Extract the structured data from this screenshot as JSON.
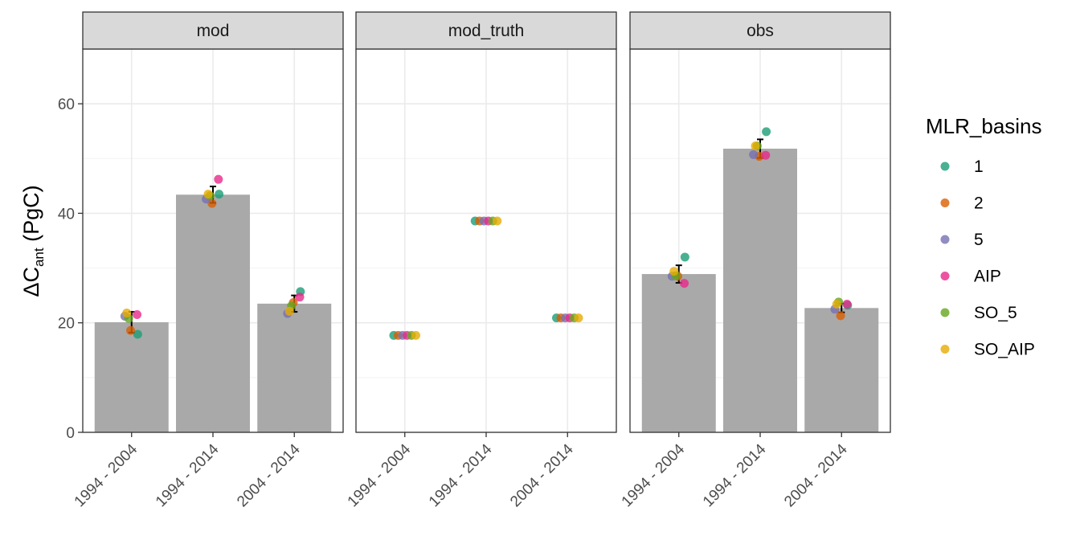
{
  "chart_data": {
    "type": "bar",
    "ylabel_delta": "ΔC",
    "ylabel_sub": "ant",
    "ylabel_unit": "(PgC)",
    "ylim": [
      0,
      70
    ],
    "yticks": [
      0,
      20,
      40,
      60
    ],
    "categories": [
      "1994 - 2004",
      "1994 - 2014",
      "2004 - 2014"
    ],
    "grid": true,
    "legend_position": "right",
    "legend_title": "MLR_basins",
    "legend": [
      {
        "label": "1",
        "color": "#1B9E77"
      },
      {
        "label": "2",
        "color": "#D95F02"
      },
      {
        "label": "5",
        "color": "#7570B3"
      },
      {
        "label": "AIP",
        "color": "#E7298A"
      },
      {
        "label": "SO_5",
        "color": "#66A61E"
      },
      {
        "label": "SO_AIP",
        "color": "#E6AB02"
      }
    ],
    "bar_color": "#A9A9A9",
    "facets": [
      {
        "name": "mod",
        "bars": [
          20.1,
          43.4,
          23.5
        ],
        "errors": [
          [
            18.2,
            22.0
          ],
          [
            41.9,
            44.9
          ],
          [
            22.0,
            25.0
          ]
        ],
        "points": [
          [
            {
              "basin": "1",
              "value": 17.9
            },
            {
              "basin": "2",
              "value": 18.6
            },
            {
              "basin": "5",
              "value": 21.2
            },
            {
              "basin": "AIP",
              "value": 21.5
            },
            {
              "basin": "SO_5",
              "value": 20.8
            },
            {
              "basin": "SO_AIP",
              "value": 21.8
            }
          ],
          [
            {
              "basin": "1",
              "value": 43.5
            },
            {
              "basin": "2",
              "value": 41.8
            },
            {
              "basin": "5",
              "value": 42.6
            },
            {
              "basin": "AIP",
              "value": 46.2
            },
            {
              "basin": "SO_5",
              "value": 43.2
            },
            {
              "basin": "SO_AIP",
              "value": 43.5
            }
          ],
          [
            {
              "basin": "1",
              "value": 25.7
            },
            {
              "basin": "2",
              "value": 23.7
            },
            {
              "basin": "5",
              "value": 21.7
            },
            {
              "basin": "AIP",
              "value": 24.7
            },
            {
              "basin": "SO_5",
              "value": 23.1
            },
            {
              "basin": "SO_AIP",
              "value": 22.1
            }
          ]
        ]
      },
      {
        "name": "mod_truth",
        "bars": [],
        "errors": [],
        "points": [
          [
            {
              "basin": "1",
              "value": 17.7
            },
            {
              "basin": "2",
              "value": 17.7
            },
            {
              "basin": "5",
              "value": 17.7
            },
            {
              "basin": "AIP",
              "value": 17.7
            },
            {
              "basin": "SO_5",
              "value": 17.7
            },
            {
              "basin": "SO_AIP",
              "value": 17.7
            }
          ],
          [
            {
              "basin": "1",
              "value": 38.6
            },
            {
              "basin": "2",
              "value": 38.6
            },
            {
              "basin": "5",
              "value": 38.6
            },
            {
              "basin": "AIP",
              "value": 38.6
            },
            {
              "basin": "SO_5",
              "value": 38.6
            },
            {
              "basin": "SO_AIP",
              "value": 38.6
            }
          ],
          [
            {
              "basin": "1",
              "value": 20.9
            },
            {
              "basin": "2",
              "value": 20.9
            },
            {
              "basin": "5",
              "value": 20.9
            },
            {
              "basin": "AIP",
              "value": 20.9
            },
            {
              "basin": "SO_5",
              "value": 20.9
            },
            {
              "basin": "SO_AIP",
              "value": 20.9
            }
          ]
        ]
      },
      {
        "name": "obs",
        "bars": [
          28.9,
          51.8,
          22.7
        ],
        "errors": [
          [
            27.3,
            30.5
          ],
          [
            50.1,
            53.5
          ],
          [
            21.9,
            23.5
          ]
        ],
        "points": [
          [
            {
              "basin": "1",
              "value": 32.0
            },
            {
              "basin": "2",
              "value": 28.5
            },
            {
              "basin": "5",
              "value": 28.5
            },
            {
              "basin": "AIP",
              "value": 27.2
            },
            {
              "basin": "SO_5",
              "value": 28.6
            },
            {
              "basin": "SO_AIP",
              "value": 29.4
            }
          ],
          [
            {
              "basin": "1",
              "value": 54.9
            },
            {
              "basin": "2",
              "value": 50.4
            },
            {
              "basin": "5",
              "value": 50.7
            },
            {
              "basin": "AIP",
              "value": 50.6
            },
            {
              "basin": "SO_5",
              "value": 52.3
            },
            {
              "basin": "SO_AIP",
              "value": 52.3
            }
          ],
          [
            {
              "basin": "1",
              "value": 23.2
            },
            {
              "basin": "2",
              "value": 21.3
            },
            {
              "basin": "5",
              "value": 22.5
            },
            {
              "basin": "AIP",
              "value": 23.4
            },
            {
              "basin": "SO_5",
              "value": 23.8
            },
            {
              "basin": "SO_AIP",
              "value": 23.4
            }
          ]
        ]
      }
    ]
  }
}
